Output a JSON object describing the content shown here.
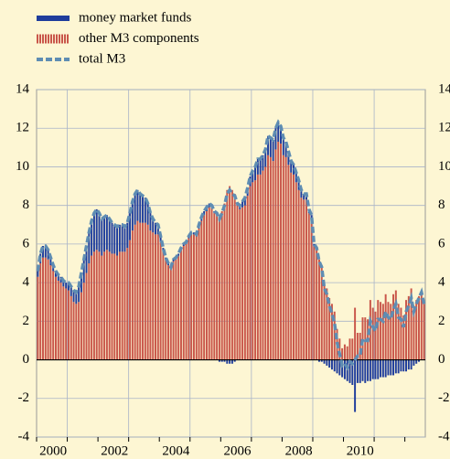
{
  "chart_data": {
    "type": "bar",
    "stacked": true,
    "categories": [
      null,
      null,
      null,
      null,
      null,
      null,
      "2000",
      null,
      null,
      null,
      null,
      null,
      null,
      null,
      null,
      null,
      null,
      null,
      null,
      null,
      null,
      null,
      null,
      null,
      null,
      null,
      null,
      null,
      null,
      null,
      "2002",
      null,
      null,
      null,
      null,
      null,
      null,
      null,
      null,
      null,
      null,
      null,
      null,
      null,
      null,
      null,
      null,
      null,
      null,
      null,
      null,
      null,
      null,
      null,
      "2004",
      null,
      null,
      null,
      null,
      null,
      null,
      null,
      null,
      null,
      null,
      null,
      null,
      null,
      null,
      null,
      null,
      null,
      null,
      null,
      null,
      null,
      null,
      null,
      "2006",
      null,
      null,
      null,
      null,
      null,
      null,
      null,
      null,
      null,
      null,
      null,
      null,
      null,
      null,
      null,
      null,
      null,
      null,
      null,
      null,
      null,
      null,
      null,
      "2008",
      null,
      null,
      null,
      null,
      null,
      null,
      null,
      null,
      null,
      null,
      null,
      null,
      null,
      null,
      null,
      null,
      null,
      null,
      null,
      null,
      null,
      null,
      null,
      "2010",
      null,
      null,
      null,
      null,
      null,
      null,
      null,
      null,
      null,
      null,
      null,
      null,
      null,
      null,
      null,
      null,
      null,
      null,
      null,
      null,
      null,
      null,
      null,
      null,
      null
    ],
    "series": [
      {
        "name": "money market funds",
        "color": "#1f3d9c",
        "values": [
          0.3,
          0.5,
          0.6,
          0.6,
          0.5,
          0.4,
          0.3,
          0.3,
          0.3,
          0.3,
          0.3,
          0.3,
          0.4,
          0.5,
          0.6,
          0.6,
          0.8,
          1.0,
          1.2,
          1.4,
          1.6,
          1.8,
          2.0,
          2.1,
          2.0,
          1.9,
          1.8,
          1.8,
          1.7,
          1.6,
          1.5,
          1.5,
          1.4,
          1.4,
          1.3,
          1.3,
          1.4,
          1.5,
          1.6,
          1.6,
          1.5,
          1.4,
          1.3,
          1.1,
          0.9,
          0.7,
          0.6,
          0.5,
          0.3,
          0.2,
          0.1,
          0.1,
          0.1,
          0.1,
          0.1,
          0.1,
          0.1,
          0.1,
          0.1,
          0.1,
          0.1,
          0.1,
          0.1,
          0.2,
          0.2,
          0.2,
          0.2,
          0.2,
          0.1,
          0.1,
          0.1,
          -0.1,
          -0.1,
          -0.1,
          -0.2,
          -0.2,
          -0.2,
          -0.1,
          0.1,
          0.2,
          0.3,
          0.4,
          0.4,
          0.5,
          0.6,
          0.7,
          0.8,
          0.8,
          0.8,
          0.9,
          1.0,
          1.0,
          1.1,
          1.1,
          1.0,
          0.9,
          0.9,
          0.8,
          0.7,
          0.6,
          0.5,
          0.5,
          0.5,
          0.4,
          0.3,
          0.3,
          0.2,
          0.2,
          0.1,
          0.0,
          -0.1,
          -0.1,
          -0.2,
          -0.3,
          -0.4,
          -0.5,
          -0.6,
          -0.7,
          -0.8,
          -0.9,
          -1.0,
          -1.1,
          -1.2,
          -1.3,
          -2.7,
          -1.2,
          -1.2,
          -1.1,
          -1.2,
          -1.1,
          -1.1,
          -1.0,
          -1.0,
          -1.0,
          -0.9,
          -0.9,
          -0.9,
          -0.8,
          -0.8,
          -0.8,
          -0.7,
          -0.7,
          -0.6,
          -0.6,
          -0.6,
          -0.5,
          -0.5,
          -0.3,
          -0.2,
          -0.1,
          0.0,
          0.0
        ]
      },
      {
        "name": "other M3 components",
        "color": "#c9564a",
        "values": [
          4.3,
          5.0,
          5.3,
          5.3,
          5.2,
          4.9,
          4.6,
          4.3,
          4.1,
          4.0,
          3.8,
          3.7,
          3.6,
          3.3,
          3.0,
          2.9,
          3.0,
          3.5,
          4.0,
          4.5,
          5.0,
          5.4,
          5.6,
          5.7,
          5.6,
          5.4,
          5.6,
          5.7,
          5.6,
          5.5,
          5.5,
          5.4,
          5.6,
          5.6,
          5.6,
          5.8,
          6.2,
          6.7,
          7.0,
          7.2,
          7.1,
          7.1,
          7.1,
          7.0,
          6.7,
          6.6,
          6.5,
          6.5,
          6.1,
          5.6,
          5.2,
          4.9,
          4.7,
          5.1,
          5.2,
          5.4,
          5.7,
          5.9,
          6.0,
          6.3,
          6.5,
          6.5,
          6.4,
          6.8,
          7.2,
          7.5,
          7.7,
          7.9,
          7.9,
          7.6,
          7.5,
          7.4,
          7.7,
          8.1,
          8.8,
          9.0,
          8.8,
          8.6,
          8.0,
          7.8,
          7.9,
          8.0,
          8.5,
          9.0,
          9.2,
          9.3,
          9.6,
          9.6,
          9.8,
          10.0,
          10.6,
          10.5,
          10.3,
          10.9,
          11.3,
          11.2,
          10.6,
          10.5,
          10.1,
          9.7,
          9.6,
          9.2,
          8.8,
          8.4,
          8.3,
          8.3,
          7.6,
          7.3,
          5.9,
          5.8,
          5.2,
          4.9,
          3.9,
          3.7,
          3.2,
          2.9,
          2.5,
          1.6,
          1.1,
          0.6,
          0.8,
          0.7,
          1.1,
          1.1,
          2.7,
          1.4,
          1.4,
          2.2,
          2.2,
          2.1,
          3.1,
          2.7,
          2.5,
          3.1,
          3.0,
          2.9,
          3.4,
          3.0,
          2.9,
          3.4,
          3.6,
          2.9,
          2.7,
          2.3,
          3.1,
          3.3,
          3.7,
          2.8,
          3.1,
          3.3,
          3.5,
          2.9
        ]
      },
      {
        "name": "total M3",
        "color": "#5f8db3",
        "type": "line",
        "values": [
          4.6,
          5.5,
          5.9,
          5.9,
          5.7,
          5.3,
          4.9,
          4.6,
          4.4,
          4.3,
          4.1,
          4.0,
          4.0,
          3.8,
          3.6,
          3.5,
          3.8,
          4.5,
          5.2,
          5.9,
          6.6,
          7.2,
          7.6,
          7.8,
          7.6,
          7.3,
          7.4,
          7.5,
          7.3,
          7.1,
          7.0,
          6.9,
          7.0,
          7.0,
          6.9,
          7.1,
          7.6,
          8.2,
          8.6,
          8.8,
          8.6,
          8.5,
          8.4,
          8.1,
          7.6,
          7.3,
          7.1,
          7.0,
          6.4,
          5.8,
          5.3,
          5.0,
          4.8,
          5.2,
          5.3,
          5.5,
          5.8,
          6.0,
          6.1,
          6.4,
          6.6,
          6.6,
          6.5,
          7.0,
          7.4,
          7.7,
          7.9,
          8.1,
          8.0,
          7.7,
          7.6,
          7.3,
          7.6,
          8.0,
          8.6,
          8.8,
          8.6,
          8.5,
          8.1,
          8.0,
          8.2,
          8.4,
          8.9,
          9.5,
          9.8,
          10.0,
          10.4,
          10.4,
          10.6,
          10.9,
          11.6,
          11.5,
          11.4,
          12.0,
          12.3,
          12.1,
          11.5,
          11.3,
          10.8,
          10.3,
          10.1,
          9.7,
          9.3,
          8.8,
          8.6,
          8.6,
          7.8,
          7.5,
          6.0,
          5.8,
          5.1,
          4.8,
          3.7,
          3.4,
          2.8,
          2.4,
          1.9,
          0.9,
          0.3,
          -0.3,
          -0.2,
          -0.4,
          -0.1,
          -0.2,
          0.0,
          0.2,
          0.2,
          1.1,
          1.0,
          1.0,
          2.0,
          1.7,
          1.5,
          2.1,
          2.1,
          2.0,
          2.5,
          2.2,
          2.1,
          2.6,
          2.9,
          2.2,
          2.1,
          1.7,
          2.5,
          2.8,
          3.2,
          2.5,
          2.9,
          3.2,
          3.5,
          2.9
        ]
      }
    ],
    "ylim": [
      -4,
      14
    ],
    "yticks": [
      -4,
      -2,
      0,
      2,
      4,
      6,
      8,
      10,
      12,
      14
    ],
    "grid": true,
    "legend": "top-left"
  }
}
